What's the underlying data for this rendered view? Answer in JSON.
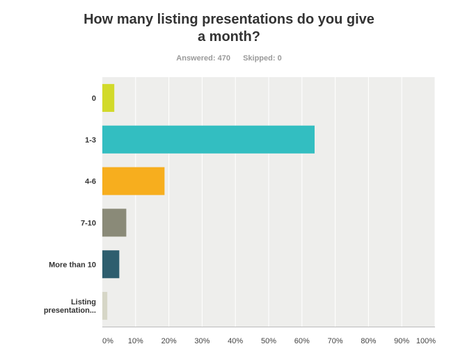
{
  "chart_data": {
    "type": "bar",
    "orientation": "horizontal",
    "title_lines": [
      "How many listing presentations do you give",
      "a month?"
    ],
    "answered_label": "Answered:",
    "answered": "470",
    "skipped_label": "Skipped:",
    "skipped": "0",
    "categories": [
      [
        "0"
      ],
      [
        "1-3"
      ],
      [
        "4-6"
      ],
      [
        "7-10"
      ],
      [
        "More than 10"
      ],
      [
        "Listing",
        "presentation..."
      ]
    ],
    "values": [
      3.6,
      63.8,
      18.7,
      7.2,
      5.1,
      1.5
    ],
    "colors": [
      "#d2da2a",
      "#33bec1",
      "#f7ae1e",
      "#8a8a78",
      "#2e5e6e",
      "#d6d6c7"
    ],
    "xlim": [
      0,
      100
    ],
    "xticks": [
      0,
      10,
      20,
      30,
      40,
      50,
      60,
      70,
      80,
      90,
      100
    ],
    "xtick_labels": [
      "0%",
      "10%",
      "20%",
      "30%",
      "40%",
      "50%",
      "60%",
      "70%",
      "80%",
      "90%",
      "100%"
    ],
    "grid": true,
    "plot_background": "#eeeeec",
    "gridline_color": "#ffffff"
  }
}
